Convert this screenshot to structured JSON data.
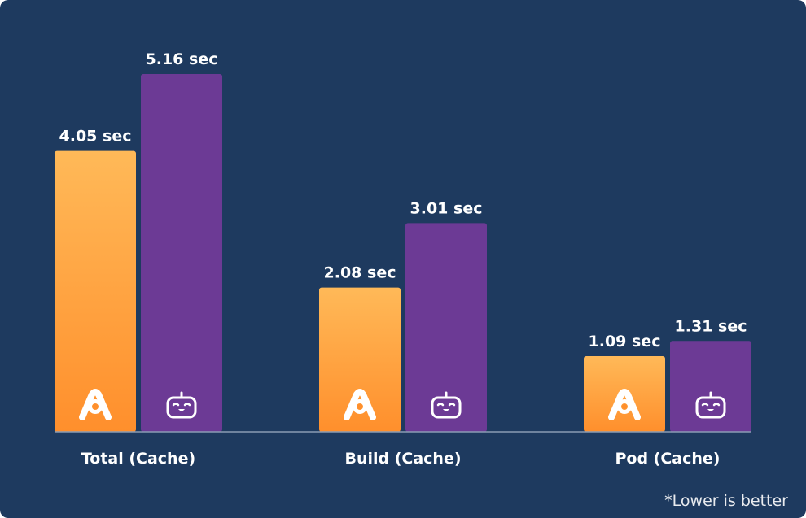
{
  "chart_data": {
    "type": "bar",
    "categories": [
      "Total (Cache)",
      "Build (Cache)",
      "Pod (Cache)"
    ],
    "series": [
      {
        "values": [
          4.05,
          2.08,
          1.09
        ],
        "labels": [
          "4.05 sec",
          "2.08 sec",
          "1.09 sec"
        ],
        "color_top": "#ffb958",
        "color_bottom": "#ff8f2c",
        "icon": "a-logo-icon"
      },
      {
        "values": [
          5.16,
          3.01,
          1.31
        ],
        "labels": [
          "5.16 sec",
          "3.01 sec",
          "1.31 sec"
        ],
        "color": "#6c3a95",
        "icon": "robot-face-icon"
      }
    ],
    "ylim": [
      0,
      5.8
    ],
    "grid": false,
    "background": "#1e3a5f",
    "axis_color": "#8a9bb4"
  },
  "footnote": "*Lower is better"
}
